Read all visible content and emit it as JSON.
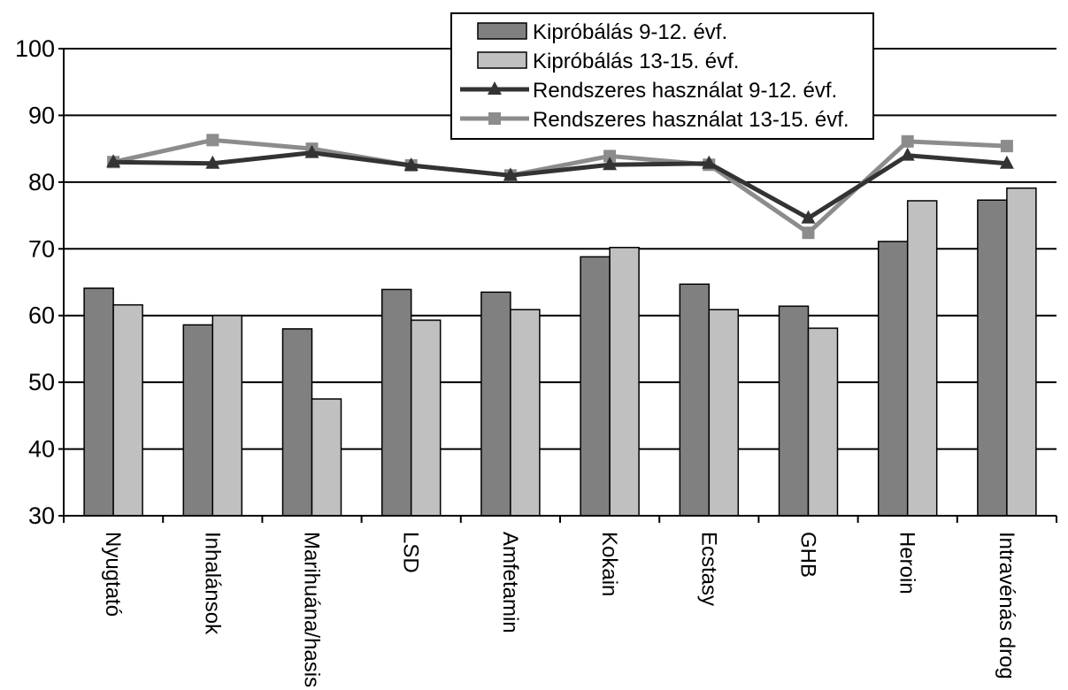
{
  "chart_data": {
    "type": "bar",
    "title": "",
    "xlabel": "",
    "ylabel": "",
    "ylim": [
      30,
      100
    ],
    "yticks": [
      30,
      40,
      50,
      60,
      70,
      80,
      90,
      100
    ],
    "grid": true,
    "legend_position": "top-right",
    "categories": [
      "Nyugtató",
      "Inhalánsok",
      "Marihuána/hasis",
      "LSD",
      "Amfetamin",
      "Kokain",
      "Ecstasy",
      "GHB",
      "Heroin",
      "Intravénás drog"
    ],
    "series": [
      {
        "name": "Kipróbálás 9-12. évf.",
        "type": "bar",
        "color": "#808080",
        "values": [
          64.1,
          58.6,
          58.0,
          63.9,
          63.5,
          68.8,
          64.7,
          61.4,
          71.1,
          77.3
        ]
      },
      {
        "name": "Kipróbálás 13-15. évf.",
        "type": "bar",
        "color": "#c0c0c0",
        "values": [
          61.6,
          60.0,
          47.5,
          59.3,
          60.9,
          70.2,
          60.9,
          58.1,
          77.2,
          79.1
        ]
      },
      {
        "name": "Rendszeres használat 9-12. évf.",
        "type": "line",
        "marker": "triangle",
        "color": "#333333",
        "values": [
          83.0,
          82.8,
          84.4,
          82.5,
          81.0,
          82.6,
          82.8,
          74.6,
          84.0,
          82.8
        ]
      },
      {
        "name": "Rendszeres használat 13-15. évf.",
        "type": "line",
        "marker": "square",
        "color": "#8c8c8c",
        "values": [
          83.0,
          86.3,
          85.0,
          82.5,
          81.0,
          83.9,
          82.6,
          72.4,
          86.1,
          85.4
        ]
      }
    ]
  }
}
